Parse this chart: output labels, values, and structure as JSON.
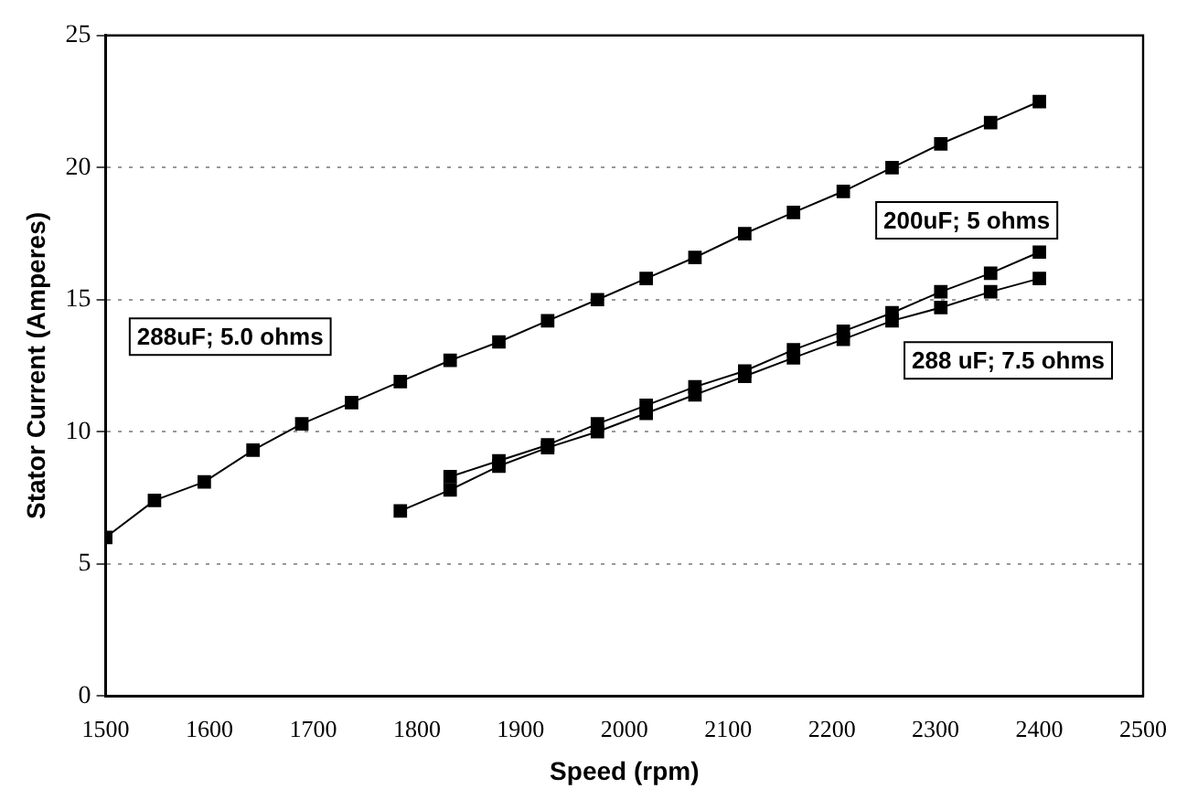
{
  "chart_data": {
    "type": "line",
    "xlabel": "Speed (rpm)",
    "ylabel": "Stator Current (Amperes)",
    "xlim": [
      1500,
      2500
    ],
    "xticks": [
      1500,
      1600,
      1700,
      1800,
      1900,
      2000,
      2100,
      2200,
      2300,
      2400,
      2500
    ],
    "ylim": [
      0,
      25
    ],
    "yticks": [
      0,
      5,
      10,
      15,
      20,
      25
    ],
    "grid": "y",
    "legend": false,
    "marker": "square",
    "line_style": "solid",
    "series": [
      {
        "name": "288uF; 5.0 ohms",
        "color": "#000000",
        "x": [
          1500,
          1547,
          1595,
          1642,
          1689,
          1737,
          1784,
          1832,
          1879,
          1926,
          1974,
          2021,
          2068,
          2116,
          2163,
          2211,
          2258,
          2305,
          2353,
          2400
        ],
        "values": [
          6.0,
          7.4,
          8.1,
          9.3,
          10.3,
          11.1,
          11.9,
          12.7,
          13.4,
          14.2,
          15.0,
          15.8,
          16.6,
          17.5,
          18.3,
          19.1,
          20.0,
          20.9,
          21.7,
          22.5
        ]
      },
      {
        "name": "200uF; 5 ohms",
        "color": "#000000",
        "x": [
          1832,
          1879,
          1926,
          1974,
          2021,
          2068,
          2116,
          2163,
          2211,
          2258,
          2305,
          2353,
          2400
        ],
        "values": [
          8.3,
          8.9,
          9.5,
          10.3,
          11.0,
          11.7,
          12.3,
          13.1,
          13.8,
          14.5,
          15.3,
          16.0,
          16.8
        ]
      },
      {
        "name": "288 uF; 7.5 ohms",
        "color": "#000000",
        "x": [
          1784,
          1832,
          1879,
          1926,
          1974,
          2021,
          2068,
          2116,
          2163,
          2211,
          2258,
          2305,
          2353,
          2400
        ],
        "values": [
          7.0,
          7.8,
          8.7,
          9.4,
          10.0,
          10.7,
          11.4,
          12.1,
          12.8,
          13.5,
          14.2,
          14.7,
          15.3,
          15.8
        ]
      }
    ]
  }
}
